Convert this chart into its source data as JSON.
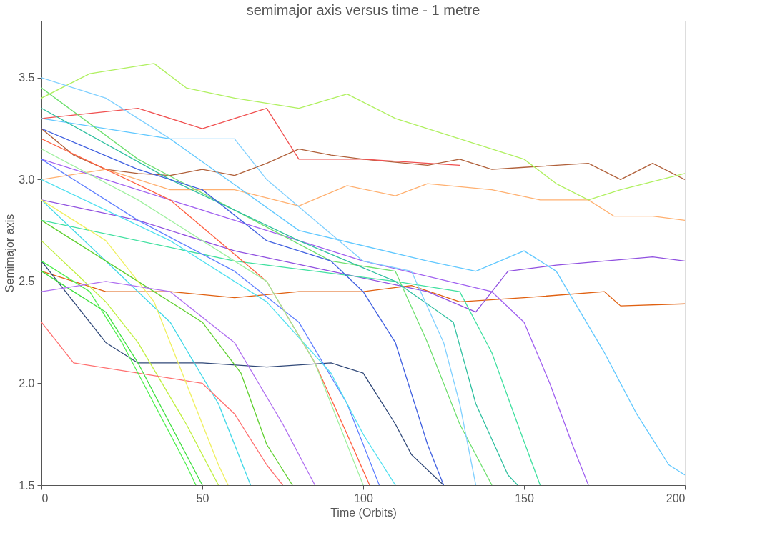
{
  "chart_data": {
    "type": "line",
    "title": "semimajor axis versus time - 1 metre",
    "xlabel": "Time (Orbits)",
    "ylabel": "Semimajor axis",
    "xlim": [
      0,
      200
    ],
    "ylim": [
      1.5,
      3.78
    ],
    "xticks": [
      0,
      50,
      100,
      150,
      200
    ],
    "yticks": [
      1.5,
      {
        "value": 2,
        "label": "2.0"
      },
      2.5,
      {
        "value": 3,
        "label": "3.0"
      },
      3.5
    ],
    "grid": false,
    "legend": false,
    "marker": "none",
    "line_style": "solid",
    "series": [
      {
        "color": "#b0603a",
        "x": [
          0,
          10,
          20,
          30,
          40,
          50,
          60,
          70,
          80,
          90,
          100,
          120,
          130,
          140,
          150,
          170,
          180,
          190,
          200
        ],
        "values": [
          3.25,
          3.12,
          3.05,
          3.03,
          3.02,
          3.05,
          3.02,
          3.08,
          3.15,
          3.12,
          3.1,
          3.07,
          3.1,
          3.05,
          3.06,
          3.08,
          3.0,
          3.08,
          3.0
        ]
      },
      {
        "color": "#e06010",
        "x": [
          0,
          10,
          20,
          40,
          60,
          80,
          100,
          115,
          130,
          150,
          175,
          180,
          200
        ],
        "values": [
          2.55,
          2.5,
          2.45,
          2.45,
          2.42,
          2.45,
          2.45,
          2.48,
          2.4,
          2.42,
          2.45,
          2.38,
          2.39
        ]
      },
      {
        "color": "#ffb070",
        "x": [
          0,
          20,
          40,
          60,
          80,
          95,
          110,
          120,
          140,
          155,
          170,
          178,
          190,
          200
        ],
        "values": [
          3.0,
          3.05,
          2.95,
          2.95,
          2.87,
          2.97,
          2.92,
          2.98,
          2.95,
          2.9,
          2.9,
          2.82,
          2.82,
          2.8
        ]
      },
      {
        "color": "#9050e0",
        "x": [
          0,
          30,
          60,
          90,
          120,
          135,
          145,
          160,
          175,
          190,
          200
        ],
        "values": [
          2.9,
          2.8,
          2.65,
          2.55,
          2.45,
          2.35,
          2.55,
          2.58,
          2.6,
          2.62,
          2.6
        ]
      },
      {
        "color": "#b0f060",
        "x": [
          0,
          15,
          35,
          45,
          60,
          80,
          95,
          110,
          130,
          150,
          160,
          170,
          180,
          200
        ],
        "values": [
          3.4,
          3.52,
          3.57,
          3.45,
          3.4,
          3.35,
          3.42,
          3.3,
          3.2,
          3.1,
          2.98,
          2.9,
          2.95,
          3.03
        ]
      },
      {
        "color": "#f05050",
        "x": [
          0,
          30,
          50,
          70,
          80,
          100,
          130
        ],
        "values": [
          3.3,
          3.35,
          3.25,
          3.35,
          3.1,
          3.1,
          3.07
        ]
      },
      {
        "color": "#60c8ff",
        "x": [
          0,
          40,
          80,
          120,
          135,
          150,
          160,
          175,
          185,
          195,
          200
        ],
        "values": [
          3.3,
          3.2,
          2.75,
          2.6,
          2.55,
          2.65,
          2.55,
          2.15,
          1.85,
          1.6,
          1.55
        ]
      },
      {
        "color": "#304878",
        "x": [
          0,
          20,
          30,
          50,
          70,
          90,
          100,
          110,
          115,
          125
        ],
        "values": [
          2.6,
          2.2,
          2.1,
          2.1,
          2.08,
          2.1,
          2.05,
          1.8,
          1.65,
          1.5
        ]
      },
      {
        "color": "#a060f0",
        "x": [
          0,
          50,
          100,
          140,
          150,
          158,
          165,
          170
        ],
        "values": [
          3.1,
          2.85,
          2.6,
          2.45,
          2.3,
          2.0,
          1.7,
          1.5
        ]
      },
      {
        "color": "#40e0a0",
        "x": [
          0,
          60,
          110,
          130,
          140,
          148,
          155
        ],
        "values": [
          2.8,
          2.6,
          2.5,
          2.45,
          2.15,
          1.8,
          1.5
        ]
      },
      {
        "color": "#40e040",
        "x": [
          0,
          10,
          20,
          30,
          40,
          50
        ],
        "values": [
          2.55,
          2.45,
          2.35,
          2.1,
          1.8,
          1.5
        ]
      },
      {
        "color": "#c0f040",
        "x": [
          0,
          20,
          30,
          45,
          55
        ],
        "values": [
          2.7,
          2.4,
          2.2,
          1.8,
          1.5
        ]
      },
      {
        "color": "#40d8e8",
        "x": [
          0,
          20,
          40,
          55,
          65
        ],
        "values": [
          2.9,
          2.6,
          2.3,
          1.9,
          1.5
        ]
      },
      {
        "color": "#60d030",
        "x": [
          0,
          30,
          50,
          62,
          70,
          78
        ],
        "values": [
          2.8,
          2.5,
          2.3,
          2.05,
          1.7,
          1.5
        ]
      },
      {
        "color": "#ff7070",
        "x": [
          0,
          10,
          30,
          50,
          60,
          70,
          75
        ],
        "values": [
          2.3,
          2.1,
          2.05,
          2.0,
          1.85,
          1.6,
          1.5
        ]
      },
      {
        "color": "#6080ff",
        "x": [
          0,
          30,
          60,
          80,
          95,
          105
        ],
        "values": [
          3.1,
          2.8,
          2.55,
          2.3,
          1.9,
          1.5
        ]
      },
      {
        "color": "#ff6040",
        "x": [
          0,
          40,
          70,
          85,
          95,
          102
        ],
        "values": [
          3.2,
          2.9,
          2.5,
          2.1,
          1.75,
          1.5
        ]
      },
      {
        "color": "#50e0f0",
        "x": [
          0,
          40,
          70,
          90,
          100,
          110
        ],
        "values": [
          3.0,
          2.7,
          2.4,
          2.05,
          1.75,
          1.5
        ]
      },
      {
        "color": "#70e070",
        "x": [
          0,
          30,
          60,
          90,
          110,
          120,
          130,
          140
        ],
        "values": [
          3.45,
          3.1,
          2.85,
          2.6,
          2.55,
          2.2,
          1.8,
          1.5
        ]
      },
      {
        "color": "#30c0a0",
        "x": [
          0,
          40,
          80,
          110,
          128,
          135,
          145,
          148
        ],
        "values": [
          3.35,
          3.0,
          2.7,
          2.5,
          2.3,
          1.9,
          1.55,
          1.5
        ]
      },
      {
        "color": "#4060e0",
        "x": [
          0,
          30,
          50,
          70,
          90,
          100,
          110,
          120,
          125
        ],
        "values": [
          3.25,
          3.05,
          2.95,
          2.7,
          2.6,
          2.45,
          2.2,
          1.7,
          1.5
        ]
      },
      {
        "color": "#f0f060",
        "x": [
          0,
          20,
          35,
          45,
          55,
          58
        ],
        "values": [
          2.9,
          2.7,
          2.4,
          2.0,
          1.6,
          1.5
        ]
      },
      {
        "color": "#50f050",
        "x": [
          0,
          15,
          25,
          35,
          45,
          48
        ],
        "values": [
          2.6,
          2.45,
          2.2,
          1.9,
          1.6,
          1.5
        ]
      },
      {
        "color": "#b070f0",
        "x": [
          0,
          20,
          40,
          60,
          75,
          85
        ],
        "values": [
          2.45,
          2.5,
          2.45,
          2.2,
          1.8,
          1.5
        ]
      },
      {
        "color": "#a0f0a0",
        "x": [
          0,
          30,
          50,
          70,
          85,
          95,
          100
        ],
        "values": [
          3.15,
          2.9,
          2.7,
          2.5,
          2.1,
          1.7,
          1.5
        ]
      },
      {
        "color": "#80d0ff",
        "x": [
          0,
          20,
          40,
          60,
          70,
          85,
          100,
          115,
          125,
          130,
          135
        ],
        "values": [
          3.5,
          3.4,
          3.2,
          3.2,
          3.0,
          2.8,
          2.6,
          2.55,
          2.2,
          1.9,
          1.5
        ]
      }
    ]
  }
}
